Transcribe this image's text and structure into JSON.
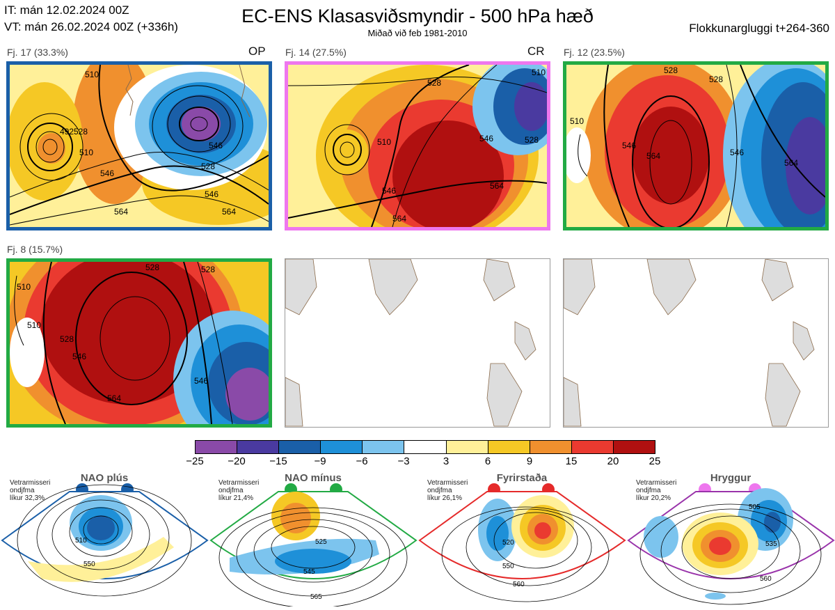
{
  "header": {
    "it": "IT: mán 12.02.2024 00Z",
    "vt": "VT: mán 26.02.2024 00Z  (+336h)",
    "title": "EC-ENS Klasasviðsmyndir - 500 hPa hæð",
    "subtitle": "Miðað við feb 1981-2010",
    "window": "Flokkunargluggi t+264-360"
  },
  "clusters": [
    {
      "label": "Fj. 17 (33.3%)",
      "tag": "OP",
      "border": "#1a5fa8",
      "regime": "NAO plús"
    },
    {
      "label": "Fj. 14 (27.5%)",
      "tag": "CR",
      "border": "#ee77ee",
      "regime": "Hryggur"
    },
    {
      "label": "Fj. 12 (23.5%)",
      "tag": "",
      "border": "#22aa44",
      "regime": "NAO mínus"
    },
    {
      "label": "Fj. 8 (15.7%)",
      "tag": "",
      "border": "#22aa44",
      "regime": "NAO mínus"
    }
  ],
  "contour_labels": {
    "c1": [
      "510",
      "528",
      "546",
      "564",
      "492",
      "510",
      "528",
      "546",
      "564",
      "546"
    ],
    "c2": [
      "528",
      "510",
      "546",
      "564",
      "564",
      "510",
      "528",
      "546"
    ],
    "c3": [
      "528",
      "510",
      "546",
      "564",
      "528",
      "546",
      "564"
    ],
    "c4": [
      "510",
      "528",
      "546",
      "564",
      "528",
      "510",
      "546",
      "528"
    ]
  },
  "colorbar": {
    "ticks": [
      "−25",
      "−20",
      "−15",
      "−9",
      "−6",
      "−3",
      "3",
      "6",
      "9",
      "15",
      "20",
      "25"
    ],
    "colors": [
      "#8a4aa8",
      "#4a3aa0",
      "#1a5fa8",
      "#1e90d8",
      "#7cc4ee",
      "#ffffff",
      "#fff099",
      "#f5c825",
      "#f0902e",
      "#ea3a30",
      "#b01010"
    ]
  },
  "regimes": [
    {
      "name": "NAO plús",
      "note": [
        "Vetrarmisseri",
        "ondjfma",
        "líkur 32,3%"
      ],
      "color": "#1a5fa8",
      "labels": [
        "510",
        "550"
      ]
    },
    {
      "name": "NAO mínus",
      "note": [
        "Vetrarmisseri",
        "ondjfma",
        "líkur 21,4%"
      ],
      "color": "#22aa44",
      "labels": [
        "525",
        "545",
        "565"
      ]
    },
    {
      "name": "Fyrirstaða",
      "note": [
        "Vetrarmisseri",
        "ondjfma",
        "líkur 26,1%"
      ],
      "color": "#e52a2a",
      "labels": [
        "520",
        "550",
        "560"
      ]
    },
    {
      "name": "Hryggur",
      "note": [
        "Vetrarmisseri",
        "ondjfma",
        "líkur 20,2%"
      ],
      "color": "#9933aa",
      "labels": [
        "505",
        "535",
        "560"
      ]
    }
  ]
}
